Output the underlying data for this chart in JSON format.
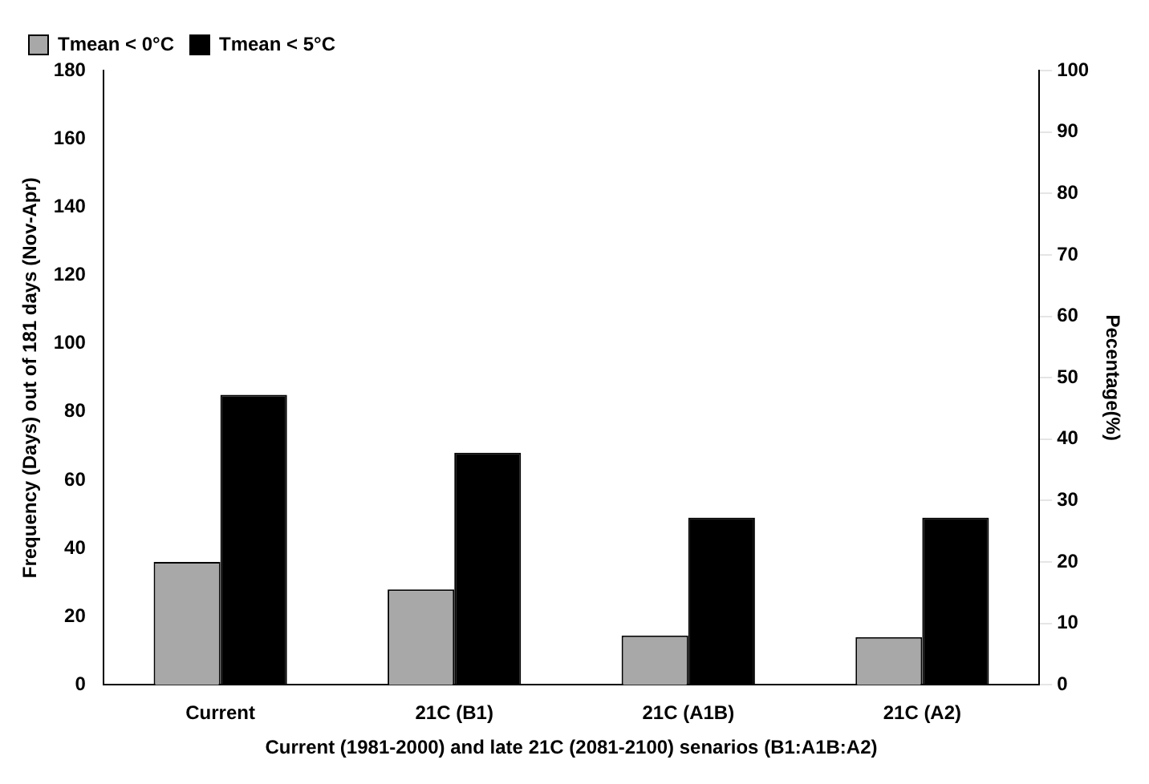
{
  "chart_data": {
    "type": "bar",
    "categories": [
      "Current",
      "21C (B1)",
      "21C (A1B)",
      "21C (A2)"
    ],
    "series": [
      {
        "name": "Tmean < 0°C",
        "color": "#a8a8a8",
        "values": [
          36,
          28,
          14.5,
          14
        ]
      },
      {
        "name": "Tmean < 5°C",
        "color": "#000000",
        "values": [
          85,
          68,
          49,
          49
        ]
      }
    ],
    "xlabel": "Current (1981-2000) and late 21C (2081-2100) senarios (B1:A1B:A2)",
    "ylabel": "Frequency (Days) out of 181 days (Nov-Apr)",
    "y2label": "Pecentage(%)",
    "ylim": [
      0,
      180
    ],
    "yticks": [
      0,
      20,
      40,
      60,
      80,
      100,
      120,
      140,
      160,
      180
    ],
    "y2lim": [
      0,
      100
    ],
    "y2ticks": [
      0,
      10,
      20,
      30,
      40,
      50,
      60,
      70,
      80,
      90,
      100
    ],
    "grid": false,
    "legend": "top left"
  }
}
